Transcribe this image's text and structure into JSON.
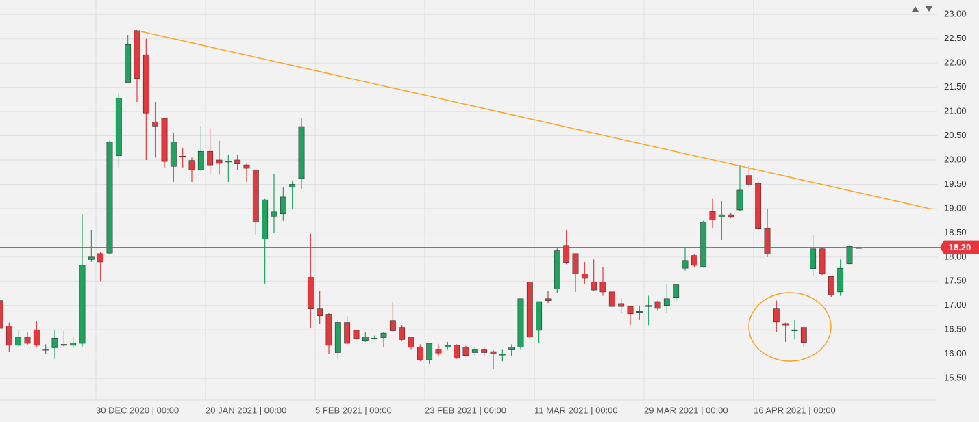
{
  "chart_data": {
    "type": "candlestick",
    "up_color": "#1fa35f",
    "down_color": "#e0393e",
    "grid": true,
    "xlim": [
      0,
      102.6
    ],
    "ylim": [
      15.05,
      23.3
    ],
    "yticks": [
      {
        "value": 15.5,
        "label": "15.50"
      },
      {
        "value": 16,
        "label": "16.00"
      },
      {
        "value": 16.5,
        "label": "16.50"
      },
      {
        "value": 17,
        "label": "17.00"
      },
      {
        "value": 17.5,
        "label": "17.50"
      },
      {
        "value": 18,
        "label": "18.00"
      },
      {
        "value": 18.5,
        "label": "18.50"
      },
      {
        "value": 19,
        "label": "19.00"
      },
      {
        "value": 19.5,
        "label": "19.50"
      },
      {
        "value": 20,
        "label": "20.00"
      },
      {
        "value": 20.5,
        "label": "20.50"
      },
      {
        "value": 21,
        "label": "21.00"
      },
      {
        "value": 21.5,
        "label": "21.50"
      },
      {
        "value": 22,
        "label": "22.00"
      },
      {
        "value": 22.5,
        "label": "22.50"
      },
      {
        "value": 23,
        "label": "23.00"
      }
    ],
    "xticks": [
      {
        "value": 10.5,
        "label": "30 DEC 2020 | 00:00"
      },
      {
        "value": 22.5,
        "label": "20 JAN 2021 | 00:00"
      },
      {
        "value": 34.5,
        "label": "5 FEB 2021 | 00:00"
      },
      {
        "value": 46.5,
        "label": "23 FEB 2021 | 00:00"
      },
      {
        "value": 58.5,
        "label": "11 MAR 2021 | 00:00"
      },
      {
        "value": 70.5,
        "label": "29 MAR 2021 | 00:00"
      },
      {
        "value": 82.5,
        "label": "16 APR 2021 | 00:00"
      }
    ],
    "open": [
      17.1,
      16.58,
      16.18,
      16.35,
      16.5,
      16.1,
      16.13,
      16.18,
      16.18,
      16.22,
      17.95,
      18.07,
      18.08,
      20.09,
      21.6,
      22.67,
      22.17,
      20.78,
      20.86,
      19.87,
      20.08,
      19.99,
      19.8,
      20.18,
      20.0,
      19.98,
      20.0,
      19.9,
      19.79,
      18.37,
      18.84,
      18.89,
      19.44,
      19.62,
      17.58,
      16.93,
      16.82,
      16.03,
      16.65,
      16.49,
      16.28,
      16.32,
      16.34,
      16.69,
      16.55,
      16.35,
      16.14,
      15.88,
      16.1,
      16.14,
      16.18,
      16.14,
      16.03,
      16.1,
      16.05,
      16.0,
      16.1,
      16.14,
      17.48,
      16.49,
      17.14,
      17.34,
      18.24,
      18.07,
      17.65,
      17.48,
      17.48,
      17.28,
      17.04,
      16.98,
      16.88,
      17.0,
      17.08,
      17.0,
      17.17,
      17.77,
      18.03,
      17.8,
      18.94,
      18.82,
      18.87,
      18.97,
      19.68,
      19.52,
      18.59,
      16.93,
      16.63,
      16.5,
      16.55,
      17.76,
      18.17,
      17.6,
      17.28,
      17.86,
      18.2
    ],
    "high": [
      17.1,
      16.65,
      16.5,
      16.45,
      16.68,
      16.2,
      16.5,
      16.48,
      16.35,
      18.88,
      18.55,
      18.1,
      20.4,
      21.38,
      22.58,
      22.68,
      22.5,
      21.2,
      20.86,
      20.55,
      20.25,
      20.05,
      20.7,
      20.65,
      20.4,
      20.1,
      20.1,
      19.92,
      19.8,
      19.2,
      19.72,
      19.45,
      19.58,
      20.86,
      18.48,
      17.3,
      16.85,
      16.7,
      16.78,
      16.5,
      16.45,
      16.38,
      16.45,
      17.08,
      16.6,
      16.35,
      16.2,
      16.22,
      16.2,
      16.25,
      16.2,
      16.17,
      16.15,
      16.15,
      16.1,
      16.1,
      16.2,
      17.14,
      17.48,
      17.08,
      17.3,
      18.2,
      18.55,
      18.07,
      17.9,
      17.95,
      17.8,
      17.3,
      17.15,
      17.0,
      17.0,
      17.2,
      17.1,
      17.45,
      17.45,
      18.2,
      18.05,
      18.75,
      19.2,
      19.15,
      18.9,
      19.9,
      19.88,
      19.55,
      19.0,
      17.1,
      16.65,
      16.7,
      16.55,
      18.45,
      18.2,
      17.6,
      17.95,
      18.25,
      18.21
    ],
    "low": [
      16.55,
      16.05,
      16.15,
      16.18,
      16.15,
      16.0,
      15.9,
      16.15,
      16.15,
      16.15,
      17.9,
      17.5,
      18.05,
      19.85,
      21.6,
      21.2,
      20.0,
      20.05,
      19.85,
      19.55,
      19.85,
      19.55,
      19.78,
      19.72,
      19.7,
      19.55,
      19.8,
      19.55,
      18.45,
      17.45,
      18.5,
      18.75,
      19.0,
      19.4,
      16.53,
      16.62,
      16.0,
      15.9,
      16.2,
      16.3,
      16.25,
      16.3,
      16.15,
      16.45,
      16.28,
      16.1,
      15.85,
      15.8,
      15.95,
      16.1,
      15.9,
      15.95,
      15.95,
      15.95,
      15.7,
      15.85,
      15.95,
      16.1,
      16.3,
      16.22,
      17.05,
      17.25,
      17.85,
      17.28,
      17.45,
      17.3,
      17.2,
      16.98,
      16.85,
      16.6,
      16.7,
      16.6,
      16.9,
      16.85,
      17.1,
      17.72,
      17.8,
      17.78,
      18.6,
      18.35,
      18.8,
      18.95,
      19.45,
      18.55,
      18.0,
      16.45,
      16.25,
      16.3,
      16.15,
      17.6,
      17.63,
      17.18,
      17.2,
      17.85,
      18.19
    ],
    "close": [
      16.53,
      16.18,
      16.35,
      16.22,
      16.18,
      16.1,
      16.33,
      16.2,
      16.23,
      17.83,
      18.0,
      17.9,
      20.37,
      21.28,
      22.38,
      21.68,
      20.97,
      20.7,
      19.97,
      20.37,
      20.06,
      19.8,
      20.18,
      19.9,
      19.93,
      19.98,
      19.92,
      19.83,
      18.72,
      19.18,
      18.93,
      19.24,
      19.5,
      20.69,
      16.93,
      16.79,
      16.18,
      16.65,
      16.22,
      16.32,
      16.35,
      16.33,
      16.43,
      16.48,
      16.3,
      16.14,
      15.88,
      16.22,
      16.02,
      16.18,
      15.92,
      15.97,
      16.1,
      16.03,
      16.0,
      16.0,
      16.14,
      17.14,
      16.35,
      17.08,
      17.1,
      18.13,
      17.89,
      17.65,
      17.56,
      17.32,
      17.28,
      16.98,
      16.98,
      16.83,
      16.88,
      17.0,
      16.94,
      17.14,
      17.44,
      17.93,
      17.83,
      18.72,
      18.77,
      18.87,
      18.83,
      19.38,
      19.5,
      18.58,
      18.06,
      16.66,
      16.6,
      16.5,
      16.24,
      18.17,
      17.66,
      17.22,
      17.77,
      18.22,
      18.2
    ],
    "last_price": {
      "value": 18.2,
      "label": "18.20",
      "color": "#e8343c"
    },
    "trend_line": {
      "x": [
        15,
        102
      ],
      "y": [
        22.67,
        18.99
      ],
      "color": "#f5a623"
    }
  }
}
